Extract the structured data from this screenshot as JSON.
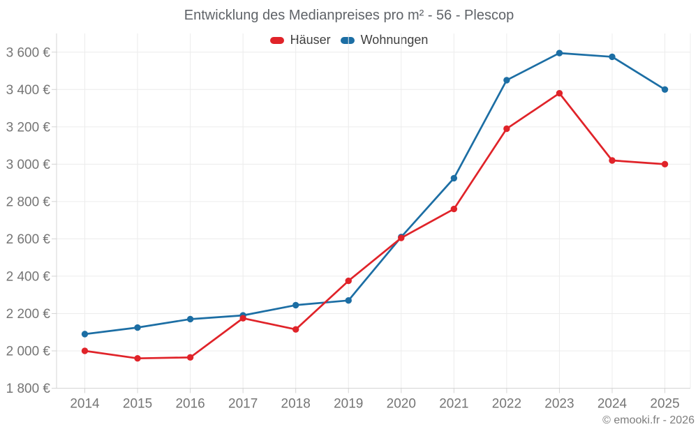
{
  "title": "Entwicklung des Medianpreises pro m² - 56 - Plescop",
  "footer": "© emooki.fr - 2026",
  "colors": {
    "haeuser_red": "#e02329",
    "wohnungen_blue": "#1c6ea4",
    "axis_label_gray": "#757575"
  },
  "chart_data": {
    "type": "line",
    "title": "Entwicklung des Medianpreises pro m² - 56 - Plescop",
    "xlabel": "",
    "ylabel": "",
    "categories": [
      "2014",
      "2015",
      "2016",
      "2017",
      "2018",
      "2019",
      "2020",
      "2021",
      "2022",
      "2023",
      "2024",
      "2025"
    ],
    "series": [
      {
        "name": "Häuser",
        "color": "#e02329",
        "values": [
          2000,
          1960,
          1965,
          2175,
          2115,
          2375,
          2605,
          2760,
          3190,
          3380,
          3020,
          3000
        ]
      },
      {
        "name": "Wohnungen",
        "color": "#1c6ea4",
        "values": [
          2090,
          2125,
          2170,
          2190,
          2245,
          2270,
          2610,
          2925,
          3450,
          3595,
          3575,
          3400
        ]
      }
    ],
    "ylim": [
      1800,
      3700
    ],
    "yticks": [
      {
        "value": 1800,
        "label": "1 800 €"
      },
      {
        "value": 2000,
        "label": "2 000 €"
      },
      {
        "value": 2200,
        "label": "2 200 €"
      },
      {
        "value": 2400,
        "label": "2 400 €"
      },
      {
        "value": 2600,
        "label": "2 600 €"
      },
      {
        "value": 2800,
        "label": "2 800 €"
      },
      {
        "value": 3000,
        "label": "3 000 €"
      },
      {
        "value": 3200,
        "label": "3 200 €"
      },
      {
        "value": 3400,
        "label": "3 400 €"
      },
      {
        "value": 3600,
        "label": "3 600 €"
      }
    ],
    "unit": "€",
    "grid": true,
    "legend_position": "top"
  }
}
